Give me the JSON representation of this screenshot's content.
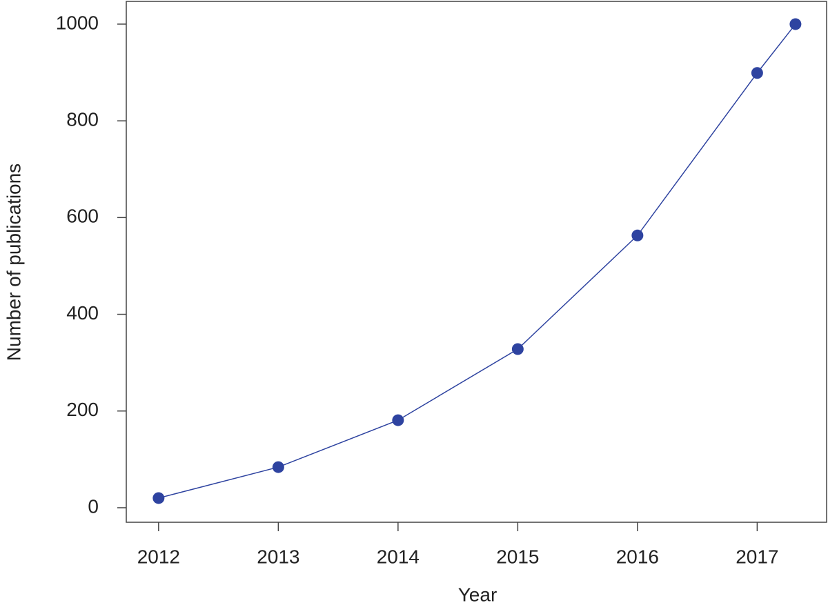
{
  "chart_data": {
    "type": "line",
    "x_label": "Year",
    "y_label": "Number of publications",
    "x": [
      2012,
      2013,
      2014,
      2015,
      2016,
      2017,
      2017.32
    ],
    "values": [
      20,
      84,
      181,
      328,
      563,
      899,
      1000
    ],
    "color": "#2e43a0",
    "xlim": [
      2011.73,
      2017.58
    ],
    "xticks": [
      2012,
      2013,
      2014,
      2015,
      2016,
      2017
    ],
    "ylim": [
      -30,
      1047
    ],
    "yticks": [
      0,
      200,
      400,
      600,
      800,
      1000
    ]
  }
}
